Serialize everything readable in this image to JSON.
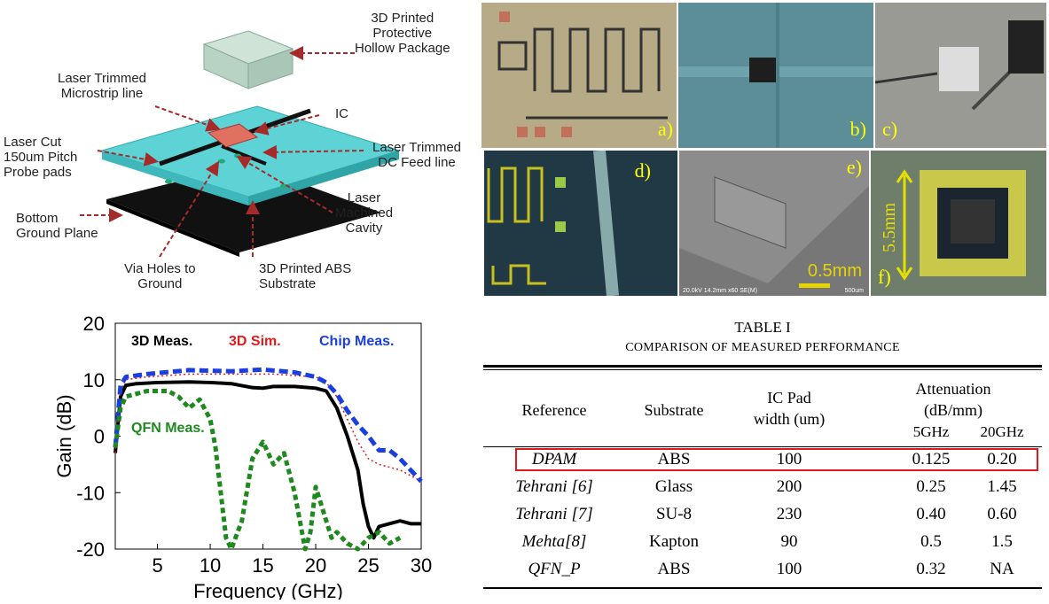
{
  "diagram": {
    "labels": {
      "package": "3D Printed\nProtective\nHollow Package",
      "microstrip": "Laser Trimmed\nMicrostrip line",
      "ic": "IC",
      "probe": "Laser Cut\n150um Pitch\nProbe pads",
      "dcfeed": "Laser Trimmed\nDC Feed line",
      "ground": "Bottom\nGround Plane",
      "cavity": "Laser\nMachined\nCavity",
      "via": "Via Holes to\nGround",
      "substrate": "3D Printed ABS\nSubstrate"
    },
    "colors": {
      "substrate": "#5ed3d6",
      "ground": "#111111",
      "arrow": "#a52a2a",
      "ic": "#e07060"
    }
  },
  "photos": {
    "labels": [
      "a)",
      "b)",
      "c)",
      "d)",
      "e)",
      "f)"
    ],
    "scale_text": "0.5mm",
    "dim_text": "5.5mm",
    "sem_caption": "20.0kV 14.2mm x60 SE(M)",
    "sem_scale": "500um"
  },
  "chart_data": {
    "type": "line",
    "xlabel": "Frequency (GHz)",
    "ylabel": "Gain (dB)",
    "xlim": [
      1,
      30
    ],
    "ylim": [
      -20,
      20
    ],
    "x_ticks": [
      5,
      10,
      15,
      20,
      25,
      30
    ],
    "y_ticks": [
      20,
      10,
      0,
      -10,
      -20
    ],
    "grid": false,
    "series": [
      {
        "name": "3D Meas.",
        "color": "#000000",
        "style": "solid-thick",
        "x": [
          1,
          1.5,
          2,
          3,
          5,
          8,
          10,
          12,
          14,
          15,
          16,
          18,
          20,
          21,
          22,
          23,
          24,
          24.5,
          25,
          25.5,
          26,
          27,
          28,
          29,
          30
        ],
        "y": [
          -3,
          7,
          9,
          9.3,
          9.5,
          9.6,
          9.5,
          9.3,
          8.6,
          8.5,
          8.8,
          8.8,
          8.5,
          8,
          5,
          0,
          -6,
          -12,
          -16,
          -18,
          -16,
          -15.5,
          -15,
          -15.5,
          -15.5
        ]
      },
      {
        "name": "3D Sim.",
        "color": "#e31a1c",
        "style": "dotted",
        "x": [
          1,
          1.5,
          2,
          4,
          8,
          12,
          16,
          20,
          21,
          22,
          23,
          24,
          25,
          26,
          28,
          30
        ],
        "y": [
          -3,
          8,
          10,
          10.5,
          11,
          11,
          11,
          10.5,
          9.5,
          7,
          3,
          -1,
          -4,
          -5,
          -6,
          -8
        ]
      },
      {
        "name": "Chip Meas.",
        "color": "#1a3fe0",
        "style": "dashed",
        "x": [
          1,
          1.5,
          2,
          4,
          8,
          12,
          15,
          18,
          20,
          21,
          22,
          23,
          24,
          25,
          26,
          27,
          28,
          29,
          30
        ],
        "y": [
          -2,
          9,
          10.5,
          11,
          11.7,
          11.5,
          11.8,
          11.3,
          10.5,
          9.5,
          7.5,
          4.5,
          2,
          0,
          -2.5,
          -2.5,
          -4,
          -6,
          -8
        ]
      },
      {
        "name": "QFN Meas.",
        "color": "#1e8a1e",
        "style": "dashed-thick",
        "x": [
          1,
          1.5,
          2,
          4,
          6,
          7,
          8,
          9,
          10,
          10.5,
          11,
          11.5,
          12,
          13,
          14,
          15,
          16,
          17,
          18,
          19,
          19.5,
          20,
          21,
          21.5,
          22,
          23,
          24,
          25,
          26,
          27,
          28
        ],
        "y": [
          -2,
          5,
          7,
          8,
          8,
          7,
          5,
          6.5,
          3,
          -2,
          -10,
          -18,
          -20,
          -15,
          -4,
          -1,
          -5,
          -3,
          -10,
          -20,
          -17,
          -9,
          -15,
          -18,
          -17,
          -19,
          -20,
          -18,
          -17,
          -19,
          -18
        ]
      }
    ]
  },
  "table": {
    "title": "TABLE I",
    "subtitle": "COMPARISON OF MEASURED PERFORMANCE",
    "headers": {
      "reference": "Reference",
      "substrate": "Substrate",
      "icpad": "IC Pad\nwidth (um)",
      "attenuation": "Attenuation\n(dB/mm)",
      "ghz5": "5GHz",
      "ghz20": "20GHz"
    },
    "rows": [
      [
        "DPAM",
        "ABS",
        "100",
        "0.125",
        "0.20"
      ],
      [
        "Tehrani [6]",
        "Glass",
        "200",
        "0.25",
        "1.45"
      ],
      [
        "Tehrani [7]",
        "SU-8",
        "230",
        "0.40",
        "0.60"
      ],
      [
        "Mehta[8]",
        "Kapton",
        "90",
        "0.5",
        "1.5"
      ],
      [
        "QFN_P",
        "ABS",
        "100",
        "0.32",
        "NA"
      ]
    ],
    "highlight_color": "#e0191c"
  }
}
